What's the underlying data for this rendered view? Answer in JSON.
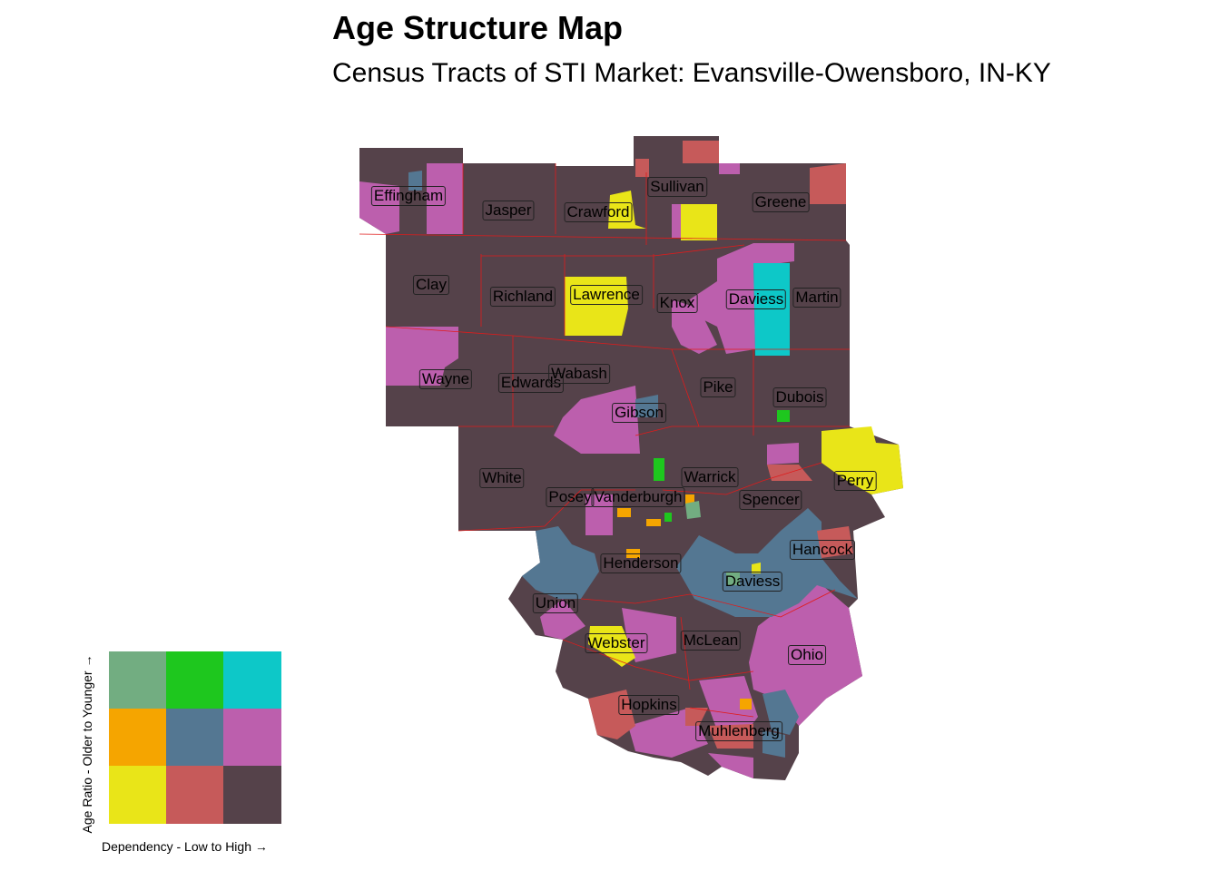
{
  "title": "Age Structure Map",
  "subtitle": "Census Tracts of STI Market: Evansville-Owensboro, IN-KY",
  "colors": {
    "base": "#55424A",
    "pink": "#BC5FAD",
    "slate": "#547792",
    "yellow": "#E9E518",
    "red": "#C65A5A",
    "cyan": "#0DC8C8",
    "green": "#1EC71E",
    "orange": "#F5A500",
    "sage": "#72AD81",
    "border": "#E01B1B"
  },
  "counties": [
    {
      "name": "Effingham"
    },
    {
      "name": "Jasper"
    },
    {
      "name": "Crawford"
    },
    {
      "name": "Sullivan"
    },
    {
      "name": "Greene"
    },
    {
      "name": "Clay"
    },
    {
      "name": "Richland"
    },
    {
      "name": "Lawrence"
    },
    {
      "name": "Knox"
    },
    {
      "name": "Daviess"
    },
    {
      "name": "Martin"
    },
    {
      "name": "Wayne"
    },
    {
      "name": "Edwards"
    },
    {
      "name": "Wabash"
    },
    {
      "name": "Pike"
    },
    {
      "name": "Dubois"
    },
    {
      "name": "Gibson"
    },
    {
      "name": "White"
    },
    {
      "name": "Warrick"
    },
    {
      "name": "Perry"
    },
    {
      "name": "Posey"
    },
    {
      "name": "Vanderburgh"
    },
    {
      "name": "Spencer"
    },
    {
      "name": "Hancock"
    },
    {
      "name": "Henderson"
    },
    {
      "name": "Daviess"
    },
    {
      "name": "Union"
    },
    {
      "name": "Webster"
    },
    {
      "name": "McLean"
    },
    {
      "name": "Ohio"
    },
    {
      "name": "Hopkins"
    },
    {
      "name": "Muhlenberg"
    }
  ],
  "legend": {
    "y_label": "Age Ratio - Older to Younger →",
    "x_label": "Dependency - Low to High →",
    "grid": [
      [
        "#72AD81",
        "#1EC71E",
        "#0DC8C8"
      ],
      [
        "#F5A500",
        "#547792",
        "#BC5FAD"
      ],
      [
        "#E9E518",
        "#C65A5A",
        "#55424A"
      ]
    ]
  }
}
